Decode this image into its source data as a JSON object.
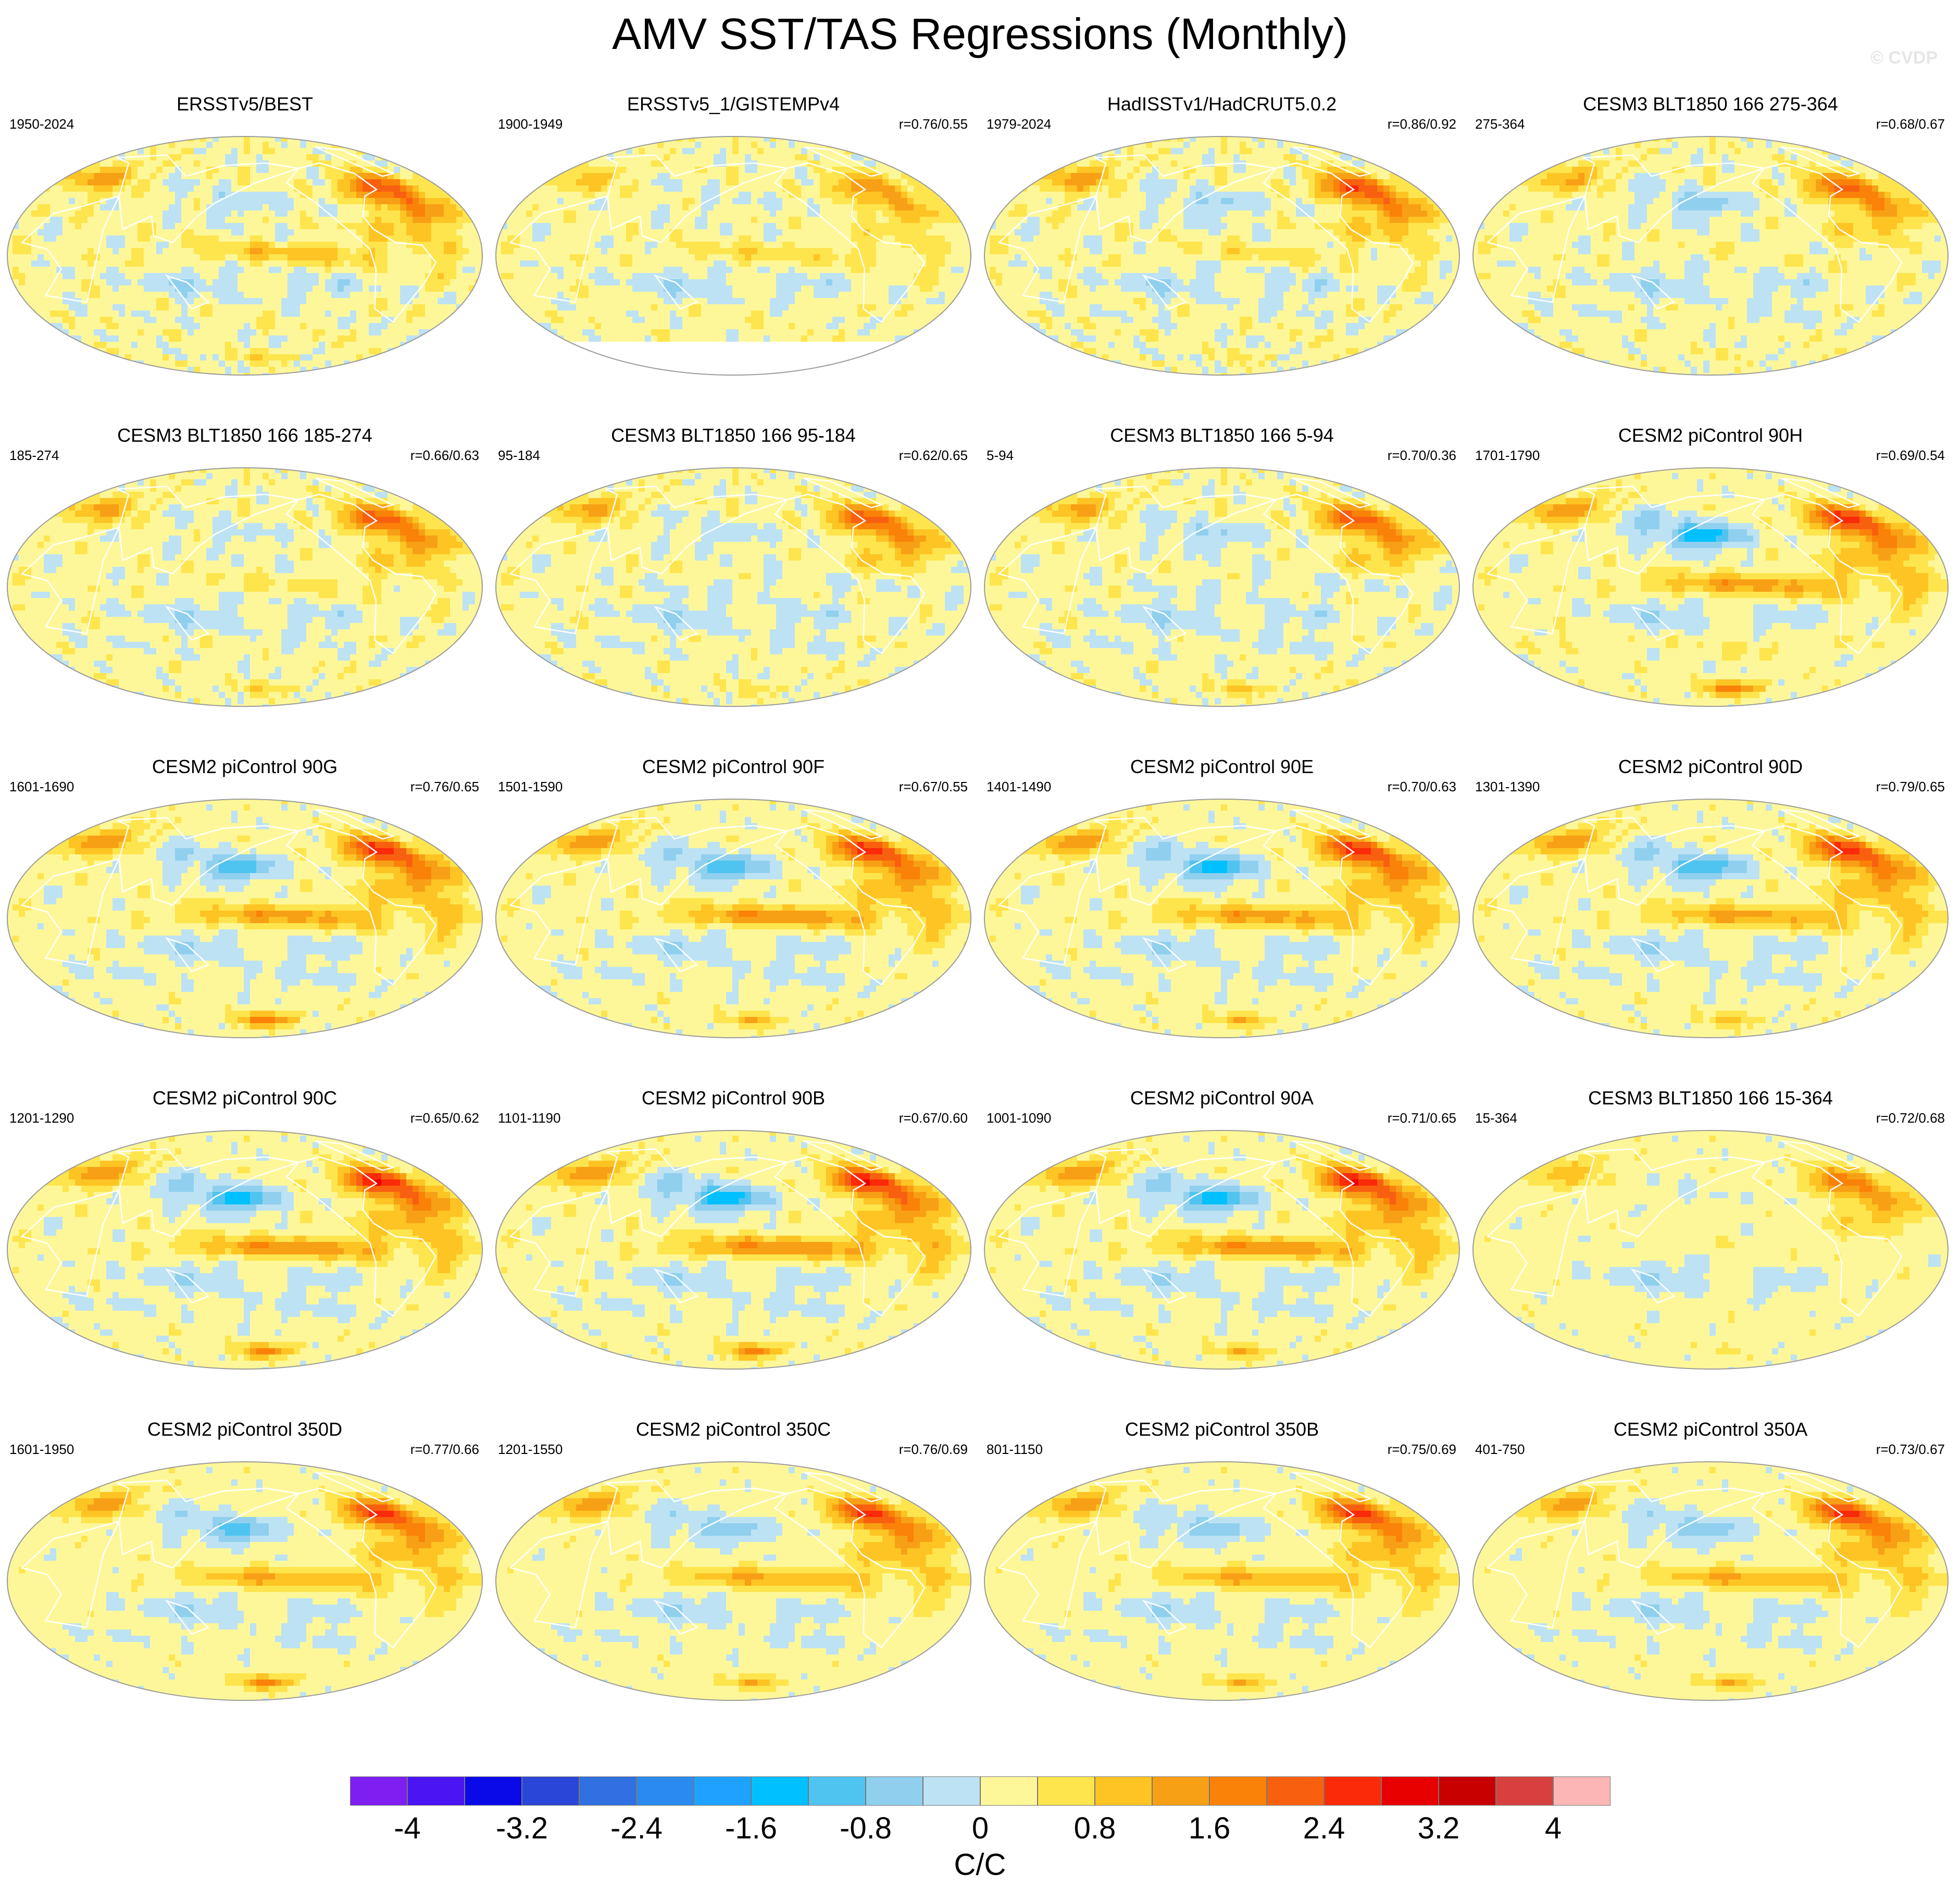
{
  "title": "AMV SST/TAS Regressions (Monthly)",
  "watermark": "© CVDP",
  "colors": {
    "land_outline": "#ffffff",
    "map_border": "#9a9a9a"
  },
  "chart_data": {
    "type": "heatmap",
    "projection": "robinson",
    "title": "AMV SST/TAS Regressions (Monthly)",
    "units": "C/C",
    "colorbar": {
      "levels": [
        -4.4,
        -4.0,
        -3.6,
        -3.2,
        -2.8,
        -2.4,
        -2.0,
        -1.6,
        -1.2,
        -0.8,
        -0.4,
        0.0,
        0.4,
        0.8,
        1.2,
        1.6,
        2.0,
        2.4,
        2.8,
        3.2,
        3.6,
        4.0,
        4.4
      ],
      "colors": [
        "#7e1ef0",
        "#4b14f2",
        "#0a0ae8",
        "#2a46d8",
        "#3070e0",
        "#2a8af0",
        "#1fa2ff",
        "#00c0ff",
        "#50c4f0",
        "#90d0ee",
        "#bde2f4",
        "#fef799",
        "#fee54e",
        "#fdc424",
        "#f8a015",
        "#fa8208",
        "#f86010",
        "#fb2a08",
        "#e80000",
        "#c80000",
        "#d84040",
        "#fcb6b6"
      ],
      "tick_labels": [
        "-4",
        "-3.2",
        "-2.4",
        "-1.6",
        "-0.8",
        "0",
        "0.8",
        "1.6",
        "2.4",
        "3.2",
        "4"
      ],
      "tick_values": [
        -4,
        -3.2,
        -2.4,
        -1.6,
        -0.8,
        0,
        0.8,
        1.6,
        2.4,
        3.2,
        4
      ]
    },
    "panels": [
      {
        "title": "ERSSTv5/BEST",
        "years": "1950-2024",
        "corr": "",
        "amv": 0.9,
        "tpac": 0.45,
        "npac": -0.25,
        "so": 0.0,
        "ant": 0.2,
        "noise": 0.35,
        "blank": 0
      },
      {
        "title": "ERSSTv5_1/GISTEMPv4",
        "years": "1900-1949",
        "corr": "r=0.76/0.55",
        "amv": 0.55,
        "tpac": 0.3,
        "npac": -0.1,
        "so": 0.05,
        "ant": 0.0,
        "noise": 0.3,
        "blank": 1
      },
      {
        "title": "HadISSTv1/HadCRUT5.0.2",
        "years": "1979-2024",
        "corr": "r=0.86/0.92",
        "amv": 0.95,
        "tpac": 0.2,
        "npac": -0.3,
        "so": -0.05,
        "ant": 0.1,
        "noise": 0.35,
        "blank": 0
      },
      {
        "title": "CESM3 BLT1850 166 275-364",
        "years": "275-364",
        "corr": "r=0.68/0.67",
        "amv": 0.8,
        "tpac": 0.05,
        "npac": -0.4,
        "so": -0.15,
        "ant": 0.05,
        "noise": 0.3,
        "blank": 0
      },
      {
        "title": "CESM3 BLT1850 166 185-274",
        "years": "185-274",
        "corr": "r=0.66/0.63",
        "amv": 0.85,
        "tpac": 0.15,
        "npac": -0.15,
        "so": -0.1,
        "ant": 0.2,
        "noise": 0.3,
        "blank": 0
      },
      {
        "title": "CESM3 BLT1850 166 95-184",
        "years": "95-184",
        "corr": "r=0.62/0.65",
        "amv": 0.85,
        "tpac": -0.1,
        "npac": -0.2,
        "so": -0.15,
        "ant": 0.15,
        "noise": 0.3,
        "blank": 0
      },
      {
        "title": "CESM3 BLT1850 166 5-94",
        "years": "5-94",
        "corr": "r=0.70/0.36",
        "amv": 0.85,
        "tpac": -0.1,
        "npac": -0.3,
        "so": -0.2,
        "ant": 0.25,
        "noise": 0.3,
        "blank": 0
      },
      {
        "title": "CESM2 piControl 90H",
        "years": "1701-1790",
        "corr": "r=0.69/0.54",
        "amv": 1.0,
        "tpac": 0.75,
        "npac": -0.8,
        "so": 0.25,
        "ant": 0.7,
        "noise": 0.25,
        "blank": 0
      },
      {
        "title": "CESM2 piControl 90G",
        "years": "1601-1690",
        "corr": "r=0.76/0.65",
        "amv": 1.0,
        "tpac": 0.75,
        "npac": -0.6,
        "so": -0.25,
        "ant": 0.7,
        "noise": 0.25,
        "blank": 0
      },
      {
        "title": "CESM2 piControl 90F",
        "years": "1501-1590",
        "corr": "r=0.67/0.55",
        "amv": 1.0,
        "tpac": 0.8,
        "npac": -0.65,
        "so": -0.25,
        "ant": 0.4,
        "noise": 0.25,
        "blank": 0
      },
      {
        "title": "CESM2 piControl 90E",
        "years": "1401-1490",
        "corr": "r=0.70/0.63",
        "amv": 1.0,
        "tpac": 0.75,
        "npac": -0.75,
        "so": -0.25,
        "ant": 0.4,
        "noise": 0.25,
        "blank": 0
      },
      {
        "title": "CESM2 piControl 90D",
        "years": "1301-1390",
        "corr": "r=0.79/0.65",
        "amv": 1.0,
        "tpac": 0.7,
        "npac": -0.7,
        "so": -0.25,
        "ant": 0.3,
        "noise": 0.25,
        "blank": 0
      },
      {
        "title": "CESM2 piControl 90C",
        "years": "1201-1290",
        "corr": "r=0.65/0.62",
        "amv": 1.05,
        "tpac": 0.8,
        "npac": -0.75,
        "so": -0.25,
        "ant": 0.6,
        "noise": 0.25,
        "blank": 0
      },
      {
        "title": "CESM2 piControl 90B",
        "years": "1101-1190",
        "corr": "r=0.67/0.60",
        "amv": 1.05,
        "tpac": 0.85,
        "npac": -0.8,
        "so": -0.25,
        "ant": 0.6,
        "noise": 0.25,
        "blank": 0
      },
      {
        "title": "CESM2 piControl 90A",
        "years": "1001-1090",
        "corr": "r=0.71/0.65",
        "amv": 1.05,
        "tpac": 0.8,
        "npac": -0.75,
        "so": -0.25,
        "ant": 0.4,
        "noise": 0.25,
        "blank": 0
      },
      {
        "title": "CESM3 BLT1850 166 15-364",
        "years": "15-364",
        "corr": "r=0.72/0.68",
        "amv": 0.7,
        "tpac": 0.05,
        "npac": -0.1,
        "so": 0.0,
        "ant": 0.1,
        "noise": 0.2,
        "blank": 0
      },
      {
        "title": "CESM2 piControl 350D",
        "years": "1601-1950",
        "corr": "r=0.77/0.66",
        "amv": 0.95,
        "tpac": 0.65,
        "npac": -0.55,
        "so": -0.2,
        "ant": 0.6,
        "noise": 0.2,
        "blank": 0
      },
      {
        "title": "CESM2 piControl 350C",
        "years": "1201-1550",
        "corr": "r=0.76/0.69",
        "amv": 0.95,
        "tpac": 0.65,
        "npac": -0.5,
        "so": -0.2,
        "ant": 0.4,
        "noise": 0.2,
        "blank": 0
      },
      {
        "title": "CESM2 piControl 350B",
        "years": "801-1150",
        "corr": "r=0.75/0.69",
        "amv": 0.95,
        "tpac": 0.65,
        "npac": -0.45,
        "so": -0.2,
        "ant": 0.4,
        "noise": 0.2,
        "blank": 0
      },
      {
        "title": "CESM2 piControl 350A",
        "years": "401-750",
        "corr": "r=0.73/0.67",
        "amv": 0.95,
        "tpac": 0.65,
        "npac": -0.5,
        "so": -0.2,
        "ant": 0.4,
        "noise": 0.2,
        "blank": 0
      }
    ]
  }
}
